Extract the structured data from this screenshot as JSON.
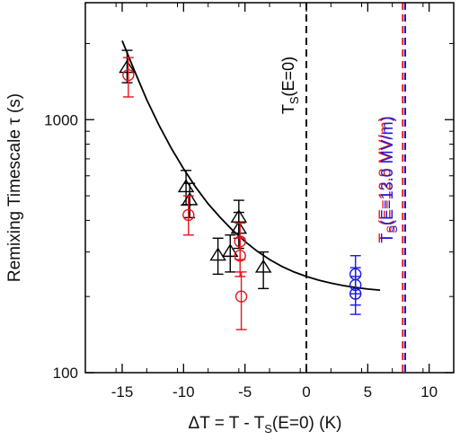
{
  "chart_data": {
    "type": "scatter",
    "x": {
      "label_prefix": "ΔT = T - T",
      "label_sub": "S",
      "label_suffix": "(E=0)  (K)",
      "lim": [
        -18,
        12
      ],
      "ticks": [
        -15,
        -10,
        -5,
        0,
        5,
        10
      ],
      "tick_labels": [
        "-15",
        "-10",
        "-5",
        "0",
        "5",
        "10"
      ]
    },
    "y": {
      "label": "Remixing Timescale τ (s)",
      "scale": "log",
      "lim": [
        100,
        2900
      ],
      "ticks": [
        100,
        1000
      ],
      "tick_labels": [
        "100",
        "1000"
      ]
    },
    "vertical_lines": [
      {
        "x": 0,
        "color": "#000000",
        "label_prefix": "T",
        "label_sub": "S",
        "label_suffix": "(E=0)"
      },
      {
        "x": 7.85,
        "color": "#e8151b",
        "label_prefix": "T",
        "label_sub": "S",
        "label_suffix": "(E=12.8 MV/m)"
      },
      {
        "x": 8.05,
        "color": "#1919e6",
        "label_prefix": "T",
        "label_sub": "S",
        "label_suffix": "(E=13.0 MV/m)"
      }
    ],
    "fit_curve": {
      "color": "#000000",
      "x": [
        -15,
        -14,
        -13,
        -12,
        -11,
        -10,
        -9,
        -8,
        -7,
        -6,
        -5,
        -4,
        -3,
        -2,
        -1,
        0,
        1,
        2,
        3,
        4,
        5,
        6
      ],
      "y": [
        2050,
        1560,
        1200,
        950,
        770,
        640,
        540,
        465,
        410,
        365,
        330,
        302,
        280,
        263,
        250,
        240,
        232,
        226,
        221,
        217,
        214,
        212
      ]
    },
    "series": [
      {
        "marker": "triangle",
        "color": "#000000",
        "points": [
          {
            "x": -14.6,
            "y": 1600,
            "lo": 1400,
            "hi": 1880
          },
          {
            "x": -9.8,
            "y": 540,
            "lo": 460,
            "hi": 630
          },
          {
            "x": -9.5,
            "y": 480,
            "lo": 410,
            "hi": 560
          },
          {
            "x": -7.2,
            "y": 290,
            "lo": 245,
            "hi": 340
          },
          {
            "x": -6.2,
            "y": 300,
            "lo": 250,
            "hi": 350
          },
          {
            "x": -5.5,
            "y": 410,
            "lo": 340,
            "hi": 480
          },
          {
            "x": -5.5,
            "y": 370,
            "lo": 310,
            "hi": 430
          },
          {
            "x": -3.5,
            "y": 260,
            "lo": 215,
            "hi": 300
          }
        ]
      },
      {
        "marker": "circle",
        "color": "#e8151b",
        "points": [
          {
            "x": -14.5,
            "y": 1500,
            "lo": 1230,
            "hi": 1760
          },
          {
            "x": -9.6,
            "y": 420,
            "lo": 350,
            "hi": 500
          },
          {
            "x": -5.4,
            "y": 330,
            "lo": 280,
            "hi": 390
          },
          {
            "x": -5.4,
            "y": 290,
            "lo": 240,
            "hi": 340
          },
          {
            "x": -5.3,
            "y": 200,
            "lo": 148,
            "hi": 250
          }
        ]
      },
      {
        "marker": "circle",
        "color": "#1919e6",
        "points": [
          {
            "x": 4,
            "y": 245,
            "lo": 205,
            "hi": 290
          },
          {
            "x": 4,
            "y": 222,
            "lo": 185,
            "hi": 260
          },
          {
            "x": 4,
            "y": 205,
            "lo": 170,
            "hi": 240
          }
        ]
      }
    ]
  }
}
